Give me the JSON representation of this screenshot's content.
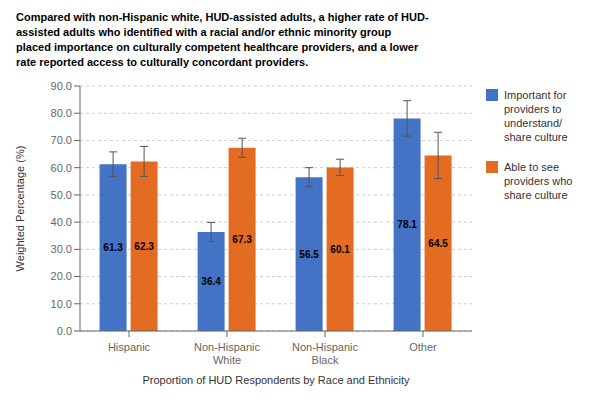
{
  "chart_data": {
    "type": "bar",
    "title": "Compared with non-Hispanic white, HUD-assisted adults, a higher rate of HUD-\nassisted adults who identified with a racial and/or ethnic minority group\nplaced importance on culturally competent healthcare providers, and a lower\nrate reported access to culturally concordant providers.",
    "categories": [
      "Hispanic",
      "Non-Hispanic White",
      "Non-Hispanic Black",
      "Other"
    ],
    "series": [
      {
        "name": "Important for\nproviders to\nunderstand/\nshare culture",
        "color": "#4472C4",
        "values": [
          61.3,
          36.4,
          56.5,
          78.1
        ],
        "errors": [
          4.5,
          3.5,
          3.5,
          6.5
        ]
      },
      {
        "name": "Able to see\nproviders who\nshare culture",
        "color": "#E36B22",
        "values": [
          62.3,
          67.3,
          60.1,
          64.5
        ],
        "errors": [
          5.5,
          3.5,
          3.0,
          8.5
        ]
      }
    ],
    "ylabel": "Weighted Percentage (%)",
    "xlabel": "Proportion of HUD Respondents by Race and Ethnicity",
    "ylim": [
      0,
      90
    ],
    "yticks": [
      {
        "value": 0,
        "label": "0.0"
      },
      {
        "value": 10,
        "label": "10.0"
      },
      {
        "value": 20,
        "label": "20.0"
      },
      {
        "value": 30,
        "label": "30.0"
      },
      {
        "value": 40,
        "label": "40.0"
      },
      {
        "value": 50,
        "label": "50.0"
      },
      {
        "value": 60,
        "label": "60.0"
      },
      {
        "value": 70,
        "label": "70.0"
      },
      {
        "value": 80,
        "label": "80.0"
      },
      {
        "value": 90,
        "label": "90.0"
      }
    ],
    "grid": true,
    "legend": "right",
    "data_labels": true
  }
}
